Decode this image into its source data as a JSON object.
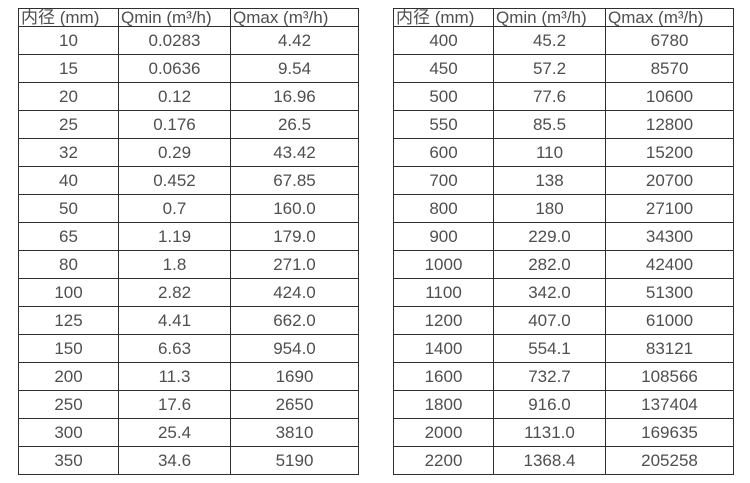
{
  "page": {
    "background_color": "#ffffff",
    "text_color": "#4f4f4f",
    "border_color": "#2f2f2f"
  },
  "tables": [
    {
      "name": "flow-rate-table-small-diameters",
      "headers": [
        "内径 (mm)",
        "Qmin (m³/h)",
        "Qmax (m³/h)"
      ],
      "rows": [
        [
          "10",
          "0.0283",
          "4.42"
        ],
        [
          "15",
          "0.0636",
          "9.54"
        ],
        [
          "20",
          "0.12",
          "16.96"
        ],
        [
          "25",
          "0.176",
          "26.5"
        ],
        [
          "32",
          "0.29",
          "43.42"
        ],
        [
          "40",
          "0.452",
          "67.85"
        ],
        [
          "50",
          "0.7",
          "160.0"
        ],
        [
          "65",
          "1.19",
          "179.0"
        ],
        [
          "80",
          "1.8",
          "271.0"
        ],
        [
          "100",
          "2.82",
          "424.0"
        ],
        [
          "125",
          "4.41",
          "662.0"
        ],
        [
          "150",
          "6.63",
          "954.0"
        ],
        [
          "200",
          "11.3",
          "1690"
        ],
        [
          "250",
          "17.6",
          "2650"
        ],
        [
          "300",
          "25.4",
          "3810"
        ],
        [
          "350",
          "34.6",
          "5190"
        ]
      ]
    },
    {
      "name": "flow-rate-table-large-diameters",
      "headers": [
        "内径 (mm)",
        "Qmin (m³/h)",
        "Qmax (m³/h)"
      ],
      "rows": [
        [
          "400",
          "45.2",
          "6780"
        ],
        [
          "450",
          "57.2",
          "8570"
        ],
        [
          "500",
          "77.6",
          "10600"
        ],
        [
          "550",
          "85.5",
          "12800"
        ],
        [
          "600",
          "110",
          "15200"
        ],
        [
          "700",
          "138",
          "20700"
        ],
        [
          "800",
          "180",
          "27100"
        ],
        [
          "900",
          "229.0",
          "34300"
        ],
        [
          "1000",
          "282.0",
          "42400"
        ],
        [
          "1100",
          "342.0",
          "51300"
        ],
        [
          "1200",
          "407.0",
          "61000"
        ],
        [
          "1400",
          "554.1",
          "83121"
        ],
        [
          "1600",
          "732.7",
          "108566"
        ],
        [
          "1800",
          "916.0",
          "137404"
        ],
        [
          "2000",
          "1131.0",
          "169635"
        ],
        [
          "2200",
          "1368.4",
          "205258"
        ]
      ]
    }
  ],
  "chart_data": [
    {
      "type": "table",
      "title": "",
      "columns": [
        "内径 (mm)",
        "Qmin (m³/h)",
        "Qmax (m³/h)"
      ],
      "rows": [
        [
          10,
          0.0283,
          4.42
        ],
        [
          15,
          0.0636,
          9.54
        ],
        [
          20,
          0.12,
          16.96
        ],
        [
          25,
          0.176,
          26.5
        ],
        [
          32,
          0.29,
          43.42
        ],
        [
          40,
          0.452,
          67.85
        ],
        [
          50,
          0.7,
          160.0
        ],
        [
          65,
          1.19,
          179.0
        ],
        [
          80,
          1.8,
          271.0
        ],
        [
          100,
          2.82,
          424.0
        ],
        [
          125,
          4.41,
          662.0
        ],
        [
          150,
          6.63,
          954.0
        ],
        [
          200,
          11.3,
          1690
        ],
        [
          250,
          17.6,
          2650
        ],
        [
          300,
          25.4,
          3810
        ],
        [
          350,
          34.6,
          5190
        ]
      ]
    },
    {
      "type": "table",
      "title": "",
      "columns": [
        "内径 (mm)",
        "Qmin (m³/h)",
        "Qmax (m³/h)"
      ],
      "rows": [
        [
          400,
          45.2,
          6780
        ],
        [
          450,
          57.2,
          8570
        ],
        [
          500,
          77.6,
          10600
        ],
        [
          550,
          85.5,
          12800
        ],
        [
          600,
          110,
          15200
        ],
        [
          700,
          138,
          20700
        ],
        [
          800,
          180,
          27100
        ],
        [
          900,
          229.0,
          34300
        ],
        [
          1000,
          282.0,
          42400
        ],
        [
          1100,
          342.0,
          51300
        ],
        [
          1200,
          407.0,
          61000
        ],
        [
          1400,
          554.1,
          83121
        ],
        [
          1600,
          732.7,
          108566
        ],
        [
          1800,
          916.0,
          137404
        ],
        [
          2000,
          1131.0,
          169635
        ],
        [
          2200,
          1368.4,
          205258
        ]
      ]
    }
  ]
}
